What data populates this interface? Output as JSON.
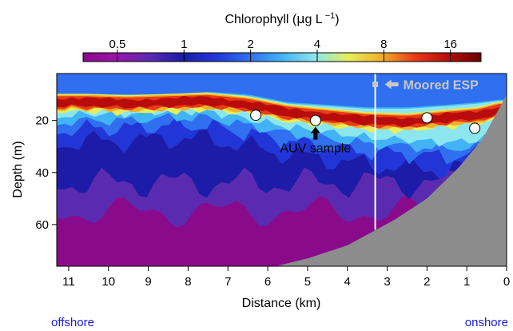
{
  "chart_data": {
    "type": "heatmap",
    "colorbar": {
      "title_prefix": "Chlorophyll (",
      "title_mu": "μ",
      "title_unit": "g L",
      "title_exp": "−1",
      "title_suffix": ")",
      "scale": "log",
      "range": [
        0.35,
        22
      ],
      "tick_values": [
        0.5,
        1,
        2,
        4,
        8,
        16
      ],
      "tick_labels": [
        "0.5",
        "1",
        "2",
        "4",
        "8",
        "16"
      ],
      "colors": [
        "#8a0a8c",
        "#9a15a8",
        "#5a2bb0",
        "#1c1ca8",
        "#2236d8",
        "#2f6ff0",
        "#42b4f6",
        "#8ce6ee",
        "#e6ee5a",
        "#f0b02a",
        "#e83a14",
        "#b80c0c",
        "#6a0000"
      ]
    },
    "xlabel": "Distance (km)",
    "ylabel": "Depth (m)",
    "xlim": [
      11.3,
      0
    ],
    "ylim": [
      76,
      2
    ],
    "x_ticks": [
      11,
      10,
      9,
      8,
      7,
      6,
      5,
      4,
      3,
      2,
      1,
      0
    ],
    "y_ticks": [
      20,
      40,
      60
    ],
    "bathymetry_color": "#8c8c8c",
    "chlorophyll_layer": [
      {
        "x": 11.3,
        "top": 10,
        "core": 13,
        "bottom": 19
      },
      {
        "x": 10.5,
        "top": 10,
        "core": 13,
        "bottom": 18
      },
      {
        "x": 9.5,
        "top": 10,
        "core": 13.5,
        "bottom": 18
      },
      {
        "x": 8.5,
        "top": 10,
        "core": 13,
        "bottom": 17
      },
      {
        "x": 7.5,
        "top": 9,
        "core": 12.5,
        "bottom": 17
      },
      {
        "x": 6.5,
        "top": 10,
        "core": 14,
        "bottom": 20
      },
      {
        "x": 5.5,
        "top": 13,
        "core": 17,
        "bottom": 23
      },
      {
        "x": 4.5,
        "top": 14,
        "core": 18.5,
        "bottom": 25
      },
      {
        "x": 3.5,
        "top": 15,
        "core": 20,
        "bottom": 27
      },
      {
        "x": 2.5,
        "top": 15,
        "core": 20.5,
        "bottom": 28
      },
      {
        "x": 1.5,
        "top": 14,
        "core": 19,
        "bottom": 29
      },
      {
        "x": 0.7,
        "top": 13,
        "core": 18,
        "bottom": 28
      },
      {
        "x": 0.2,
        "top": 12,
        "core": 16,
        "bottom": 24
      }
    ],
    "seafloor": [
      {
        "x": 11.3,
        "depth": 76
      },
      {
        "x": 5.8,
        "depth": 76
      },
      {
        "x": 5.0,
        "depth": 73
      },
      {
        "x": 4.0,
        "depth": 68
      },
      {
        "x": 3.4,
        "depth": 63
      },
      {
        "x": 2.8,
        "depth": 58
      },
      {
        "x": 2.0,
        "depth": 50
      },
      {
        "x": 1.2,
        "depth": 38
      },
      {
        "x": 0.6,
        "depth": 27
      },
      {
        "x": 0.1,
        "depth": 13
      },
      {
        "x": 0,
        "depth": 10
      }
    ],
    "sample_points": [
      {
        "x": 6.3,
        "y": 18
      },
      {
        "x": 4.8,
        "y": 20
      },
      {
        "x": 2.0,
        "y": 19
      },
      {
        "x": 0.8,
        "y": 23
      }
    ],
    "moored_esp": {
      "x": 3.3,
      "y_top": 2,
      "y_bottom": 62,
      "label": "Moored ESP"
    },
    "auv_sample": {
      "x": 4.8,
      "y": 20,
      "label": "AUV sample"
    },
    "bottom_labels": {
      "left": "offshore",
      "right": "onshore"
    }
  }
}
